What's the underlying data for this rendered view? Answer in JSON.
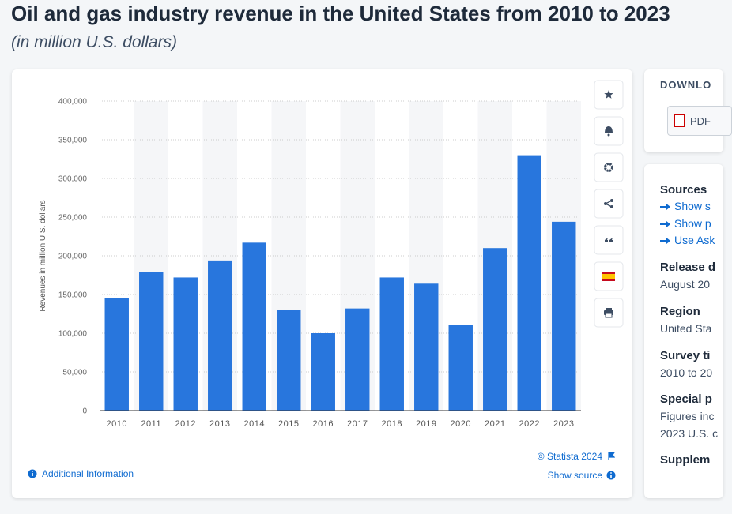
{
  "header": {
    "title": "Oil and gas industry revenue in the United States from 2010 to 2023",
    "subtitle": "(in million U.S. dollars)"
  },
  "chart_data": {
    "type": "bar",
    "y_axis_label": "Revenues in million U.S. dollars",
    "categories": [
      "2010",
      "2011",
      "2012",
      "2013",
      "2014",
      "2015",
      "2016",
      "2017",
      "2018",
      "2019",
      "2020",
      "2021",
      "2022",
      "2023"
    ],
    "values": [
      145000,
      179000,
      172000,
      194000,
      217000,
      130000,
      100000,
      132000,
      172000,
      164000,
      111000,
      210000,
      330000,
      244000
    ],
    "color": "#2876dd",
    "ylim": [
      0,
      400000
    ],
    "yticks": [
      0,
      {
        "value": 50000,
        "label": "50,000"
      },
      {
        "value": 100000,
        "label": "100,000"
      },
      {
        "value": 150000,
        "label": "150,000"
      },
      {
        "value": 200000,
        "label": "200,000"
      },
      {
        "value": 250000,
        "label": "250,000"
      },
      {
        "value": 300000,
        "label": "300,000"
      },
      {
        "value": 350000,
        "label": "350,000"
      },
      {
        "value": 400000,
        "label": "400,000"
      }
    ],
    "grid": true
  },
  "footer": {
    "copyright": "© Statista 2024",
    "additional_info": "Additional Information",
    "show_source": "Show source"
  },
  "side_panel": {
    "download_heading": "DOWNLO",
    "pdf": "PDF",
    "sources_heading": "Sources",
    "source_links": [
      "Show s",
      "Show p",
      "Use Ask"
    ],
    "details": [
      {
        "label": "Release d",
        "lines": [
          "August 20"
        ]
      },
      {
        "label": "Region",
        "lines": [
          "United Sta"
        ]
      },
      {
        "label": "Survey ti",
        "lines": [
          "2010 to 20"
        ]
      },
      {
        "label": "Special p",
        "lines": [
          "Figures inc",
          "2023 U.S. c"
        ]
      },
      {
        "label": "Supplem",
        "lines": []
      }
    ]
  }
}
